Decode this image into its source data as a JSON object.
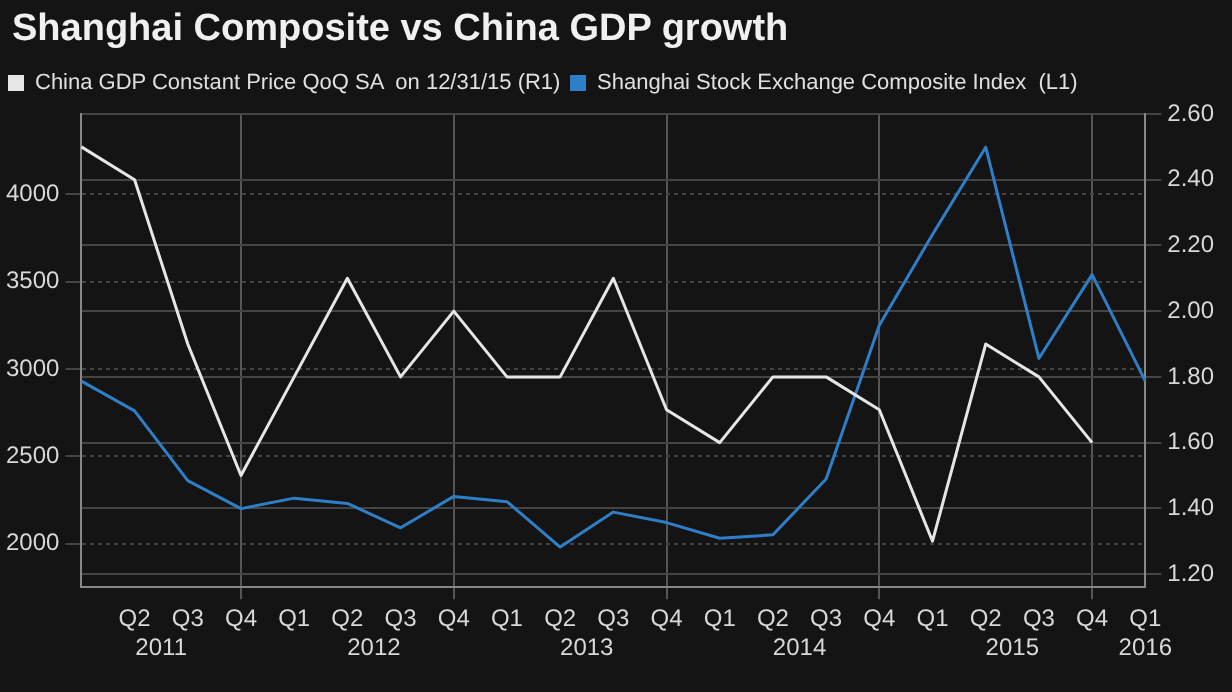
{
  "chart_data": {
    "type": "line",
    "title": "Shanghai Composite vs China GDP growth",
    "categories": [
      null,
      "Q2",
      "Q3",
      "Q4",
      "Q1",
      "Q2",
      "Q3",
      "Q4",
      "Q1",
      "Q2",
      "Q3",
      "Q4",
      "Q1",
      "Q2",
      "Q3",
      "Q4",
      "Q1",
      "Q2",
      "Q3",
      "Q4",
      "Q1"
    ],
    "series": [
      {
        "name": "China GDP Constant Price QoQ SA  on 12/31/15 (R1)",
        "color": "#e6e6e6",
        "axis": "y2",
        "values": [
          2.5,
          2.4,
          1.9,
          1.5,
          1.8,
          2.1,
          1.8,
          2.0,
          1.8,
          1.8,
          2.1,
          1.7,
          1.6,
          1.8,
          1.8,
          1.7,
          1.3,
          1.9,
          1.8,
          1.6,
          null
        ]
      },
      {
        "name": "Shanghai Stock Exchange Composite Index  (L1)",
        "color": "#2f7fc8",
        "values": [
          2930,
          2760,
          2360,
          2200,
          2260,
          2230,
          2090,
          2270,
          2240,
          1980,
          2180,
          2120,
          2030,
          2050,
          2370,
          3250,
          3770,
          4270,
          3060,
          3540,
          2930
        ]
      }
    ],
    "ylim": [
      1750,
      4460
    ],
    "yticks": [
      2000,
      2500,
      3000,
      3500,
      4000
    ],
    "y2lim": [
      1.16,
      2.6
    ],
    "y2ticks": [
      {
        "value": 1.2,
        "label": "1.20"
      },
      {
        "value": 1.4,
        "label": "1.40"
      },
      {
        "value": 1.6,
        "label": "1.60"
      },
      {
        "value": 1.8,
        "label": "1.80"
      },
      {
        "value": 2.0,
        "label": "2.00"
      },
      {
        "value": 2.2,
        "label": "2.20"
      },
      {
        "value": 2.4,
        "label": "2.40"
      },
      {
        "value": 2.6,
        "label": "2.60"
      }
    ],
    "annotations": [
      "2011",
      "2012",
      "2013",
      "2014",
      "2015",
      "2016"
    ],
    "grid": true,
    "legend": "top left",
    "marker": "none",
    "line_style": "solid"
  }
}
